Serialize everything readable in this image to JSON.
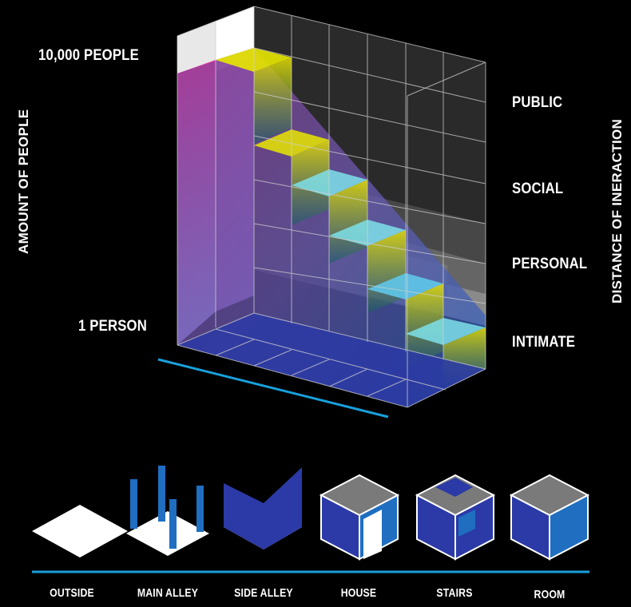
{
  "axes": {
    "left_title": "AMOUNT OF PEOPLE",
    "right_title": "DISTANCE OF INERACTION"
  },
  "scale": {
    "top": "10,000 PEOPLE",
    "bottom": "1 PERSON"
  },
  "zones": [
    "PUBLIC",
    "SOCIAL",
    "PERSONAL",
    "INTIMATE"
  ],
  "spaces": [
    "OUTSIDE",
    "MAIN ALLEY",
    "SIDE ALLEY",
    "HOUSE",
    "STAIRS",
    "ROOM"
  ],
  "colors": {
    "background": "#000000",
    "accent_line": "#1aa0dc",
    "magenta": "#e83aa8",
    "navy": "#2a3190",
    "blue": "#1f73c2",
    "yellow": "#e6e600",
    "cyan": "#66d6ee",
    "white": "#ffffff",
    "grey_top": "#7a7a7a"
  }
}
